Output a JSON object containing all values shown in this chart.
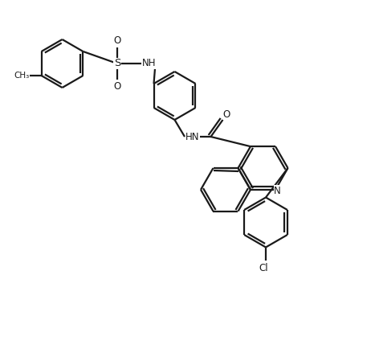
{
  "bg_color": "#ffffff",
  "bond_color": "#1a1a1a",
  "line_width": 1.6,
  "font_size": 8.5,
  "fig_width": 4.67,
  "fig_height": 4.34,
  "dpi": 100,
  "xlim": [
    0,
    9.34
  ],
  "ylim": [
    0,
    8.68
  ]
}
